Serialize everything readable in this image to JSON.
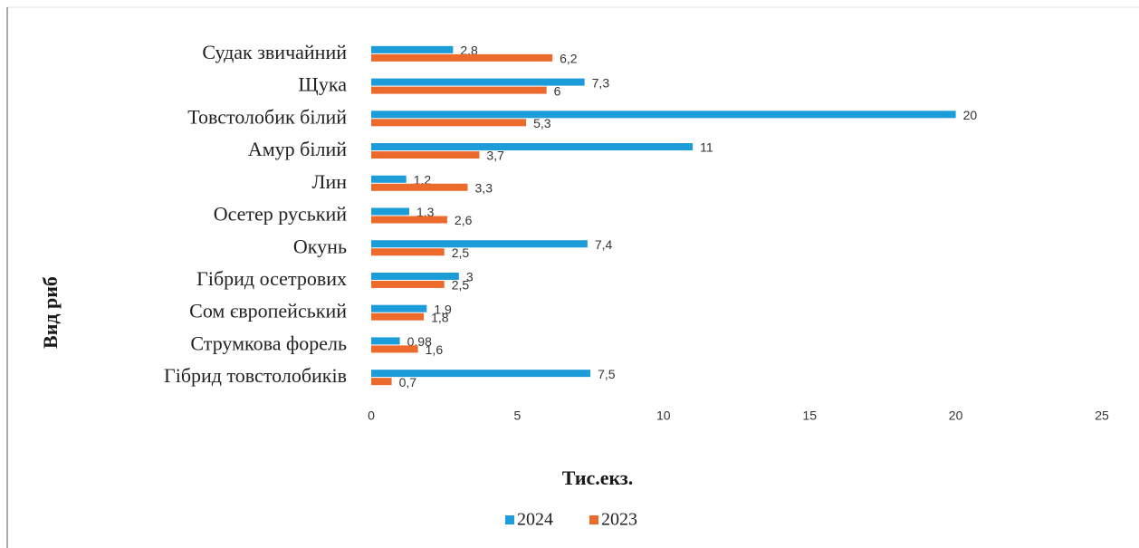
{
  "chart_data": {
    "type": "barh",
    "xlabel": "Тис.екз.",
    "ylabel": "Вид риб",
    "categories": [
      "Судак звичайний",
      "Щука",
      "Товстолобик білий",
      "Амур білий",
      "Лин",
      "Осетер руський",
      "Окунь",
      "Гібрид осетрових",
      "Сом європейський",
      "Струмкова форель",
      "Гібрид товстолобиків"
    ],
    "series": [
      {
        "name": "2024",
        "color": "#1c9cd8",
        "values": [
          2.8,
          7.3,
          20,
          11,
          1.2,
          1.3,
          7.4,
          3,
          1.9,
          0.98,
          7.5
        ],
        "value_labels": [
          "2,8",
          "7,3",
          "20",
          "11",
          "1,2",
          "1,3",
          "7,4",
          "3",
          "1,9",
          "0,98",
          "7,5"
        ]
      },
      {
        "name": "2023",
        "color": "#ec6a2c",
        "values": [
          6.2,
          6,
          5.3,
          3.7,
          3.3,
          2.6,
          2.5,
          2.5,
          1.8,
          1.6,
          0.7
        ],
        "value_labels": [
          "6,2",
          "6",
          "5,3",
          "3,7",
          "3,3",
          "2,6",
          "2,5",
          "2,5",
          "1,8",
          "1,6",
          "0,7"
        ]
      }
    ],
    "xlim": [
      0,
      25
    ],
    "xticks": [
      0,
      5,
      10,
      15,
      20,
      25
    ],
    "grid": false,
    "legend": "bottom"
  }
}
